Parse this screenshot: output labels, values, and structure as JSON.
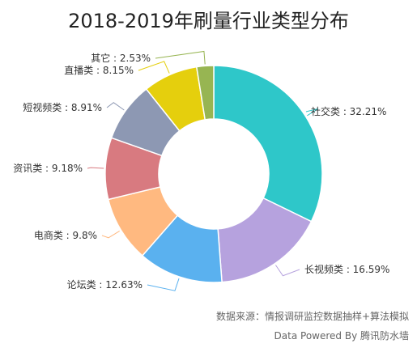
{
  "chart_data": {
    "type": "pie",
    "variant": "donut",
    "title": "2018-2019年刷量行业类型分布",
    "categories": [
      "社交类",
      "长视频类",
      "论坛类",
      "电商类",
      "资讯类",
      "短视频类",
      "直播类",
      "其它"
    ],
    "values": [
      32.21,
      16.59,
      12.63,
      9.8,
      9.18,
      8.91,
      8.15,
      2.53
    ],
    "labels": [
      "社交类 : 32.21%",
      "长视频类 : 16.59%",
      "论坛类 : 12.63%",
      "电商类 : 9.8%",
      "资讯类 : 9.18%",
      "短视频类 : 8.91%",
      "直播类 : 8.15%",
      "其它 : 2.53%"
    ],
    "colors": [
      "#2ec7c9",
      "#b6a2de",
      "#5ab1ef",
      "#ffb980",
      "#d87a80",
      "#8d98b3",
      "#e5cf0d",
      "#97b552"
    ],
    "legend": "none"
  },
  "footer": {
    "source": "数据来源：情报调研监控数据抽样+算法模拟",
    "powered": "Data Powered By 腾讯防水墙"
  }
}
